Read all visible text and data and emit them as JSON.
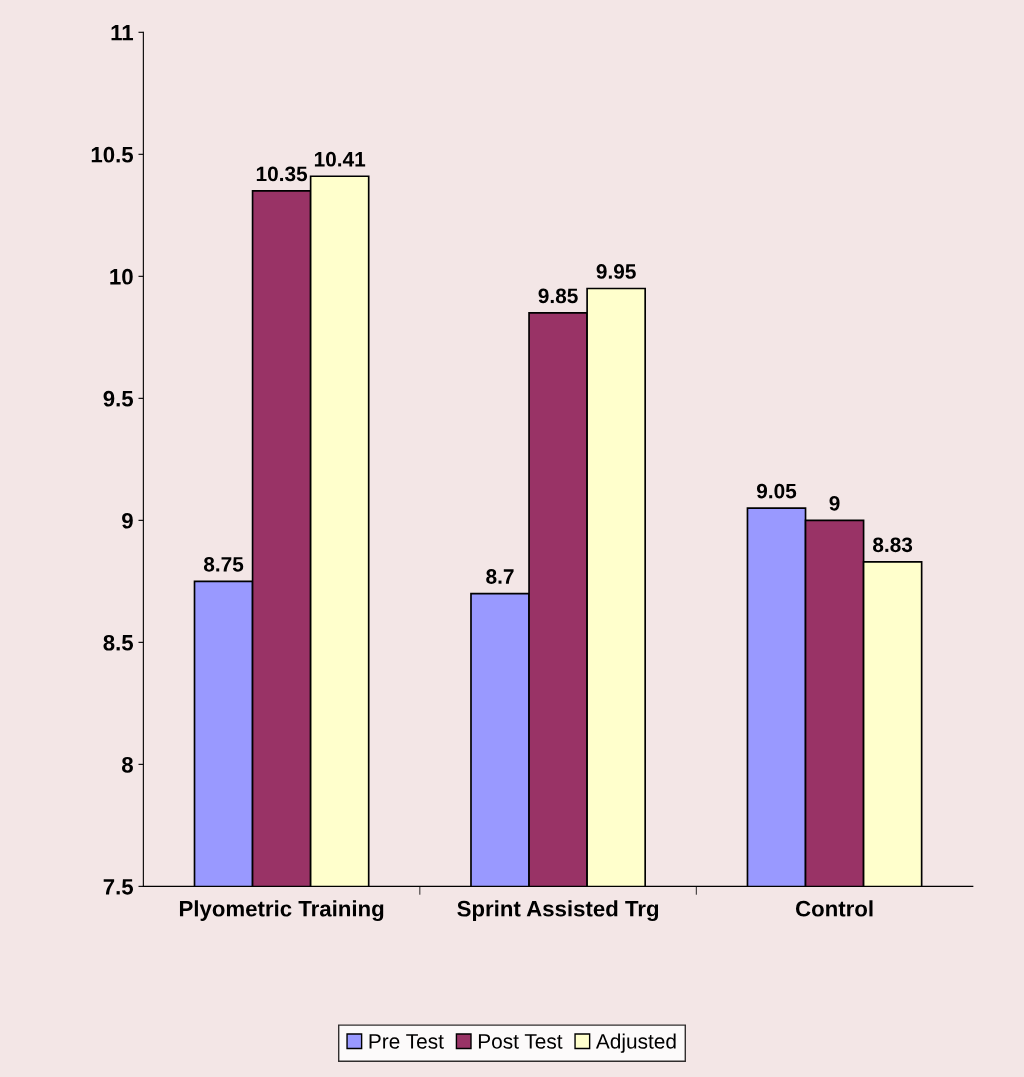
{
  "chart_data": {
    "type": "bar",
    "categories": [
      "Plyometric Training",
      "Sprint Assisted Trg",
      "Control"
    ],
    "series": [
      {
        "name": "Pre Test",
        "color": "#9999ff",
        "values": [
          8.75,
          8.7,
          9.05
        ]
      },
      {
        "name": "Post Test",
        "color": "#993366",
        "values": [
          10.35,
          9.85,
          9
        ]
      },
      {
        "name": "Adjusted",
        "color": "#ffffcc",
        "values": [
          10.41,
          9.95,
          8.83
        ]
      }
    ],
    "ylim": [
      7.5,
      11
    ],
    "yticks": [
      7.5,
      8,
      8.5,
      9,
      9.5,
      10,
      10.5,
      11
    ],
    "data_labels": true,
    "legend": "bottom",
    "grid": false
  }
}
